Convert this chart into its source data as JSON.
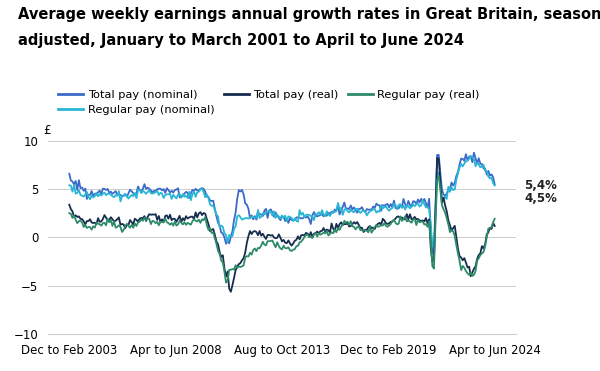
{
  "title_line1": "Average weekly earnings annual growth rates in Great Britain, seasonally",
  "title_line2": "adjusted, January to March 2001 to April to June 2024",
  "ylabel": "£",
  "ylim": [
    -10,
    10
  ],
  "yticks": [
    -10,
    -5,
    0,
    5,
    10
  ],
  "xtick_labels": [
    "Dec to Feb 2003",
    "Apr to Jun 2008",
    "Aug to Oct 2013",
    "Dec to Feb 2019",
    "Apr to Jun 2024"
  ],
  "legend_entries": [
    {
      "label": "Total pay (nominal)",
      "color": "#3b6bc9"
    },
    {
      "label": "Regular pay (nominal)",
      "color": "#29b6d4"
    },
    {
      "label": "Total pay (real)",
      "color": "#162d4e"
    },
    {
      "label": "Regular pay (real)",
      "color": "#2e8b6a"
    }
  ],
  "annotation_5_4": "5,4%",
  "annotation_4_5": "4,5%",
  "bg_color": "#ffffff",
  "grid_color": "#cccccc",
  "title_fontsize": 10.5,
  "tick_fontsize": 8.5
}
